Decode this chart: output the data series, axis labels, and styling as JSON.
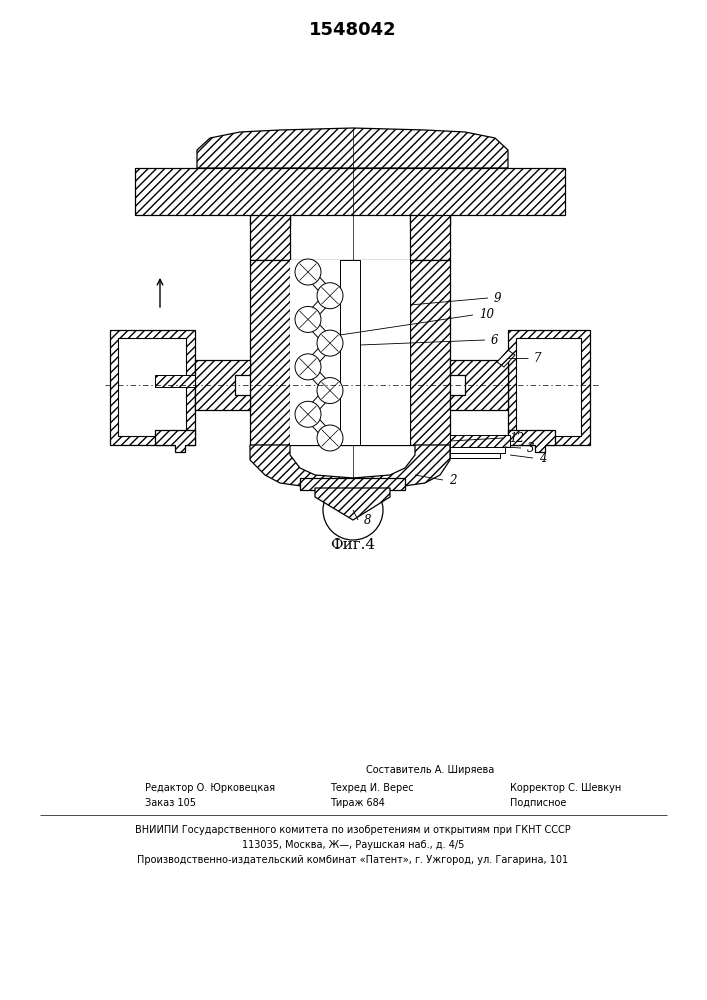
{
  "patent_number": "1548042",
  "fig_label": "Фиг.4",
  "bg": "#ffffff",
  "footer": {
    "l1c": "Составитель А. Ширяева",
    "l2a": "Редактор О. Юрковецкая",
    "l2b": "Техред И. Верес",
    "l2c": "Корректор С. Шевкун",
    "l3a": "Заказ 105",
    "l3b": "Тираж 684",
    "l3c": "Подписное",
    "l4": "ВНИИПИ Государственного комитета по изобретениям и открытиям при ГКНТ СССР",
    "l5": "113035, Москва, Ж—̵, Раушская наб., д. 4/5",
    "l6": "Производственно-издательский комбинат «Патент», г. Ужгород, ул. Гагарина, 101"
  }
}
